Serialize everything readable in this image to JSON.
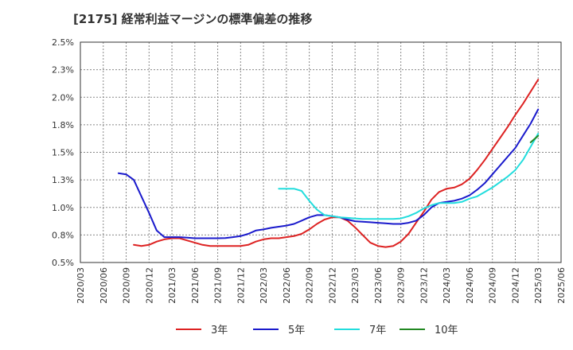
{
  "chart_data": {
    "type": "line",
    "title": "[2175]  経常利益マージンの標準偏差の推移",
    "xlabel": "",
    "ylabel": "",
    "ylim": [
      0.5,
      2.5
    ],
    "yticks": [
      "0.5%",
      "0.8%",
      "1.0%",
      "1.3%",
      "1.5%",
      "1.8%",
      "2.0%",
      "2.3%",
      "2.5%"
    ],
    "xticks": [
      "2020/03",
      "2020/06",
      "2020/09",
      "2020/12",
      "2021/03",
      "2021/06",
      "2021/09",
      "2021/12",
      "2022/03",
      "2022/06",
      "2022/09",
      "2022/12",
      "2023/03",
      "2023/06",
      "2023/09",
      "2023/12",
      "2024/03",
      "2024/06",
      "2024/09",
      "2024/12",
      "2025/03",
      "2025/06"
    ],
    "grid": true,
    "legend_position": "bottom",
    "series": [
      {
        "name": "3年",
        "color": "#dd2222",
        "values": [
          0.66,
          0.65,
          0.66,
          0.69,
          0.71,
          0.72,
          0.72,
          0.7,
          0.68,
          0.66,
          0.65,
          0.65,
          0.65,
          0.65,
          0.65,
          0.66,
          0.69,
          0.71,
          0.72,
          0.72,
          0.73,
          0.74,
          0.76,
          0.8,
          0.85,
          0.89,
          0.91,
          0.91,
          0.88,
          0.82,
          0.75,
          0.68,
          0.65,
          0.64,
          0.65,
          0.69,
          0.76,
          0.86,
          0.96,
          1.07,
          1.14,
          1.17,
          1.18,
          1.21,
          1.26,
          1.34,
          1.43,
          1.53,
          1.63,
          1.73,
          1.84,
          1.94,
          2.05,
          2.16
        ]
      },
      {
        "name": "5年",
        "color": "#1a1acc",
        "values": [
          1.31,
          1.3,
          1.25,
          1.1,
          0.95,
          0.79,
          0.73,
          0.73,
          0.73,
          0.725,
          0.72,
          0.72,
          0.72,
          0.72,
          0.722,
          0.73,
          0.74,
          0.76,
          0.79,
          0.8,
          0.815,
          0.825,
          0.835,
          0.85,
          0.88,
          0.91,
          0.93,
          0.93,
          0.92,
          0.91,
          0.89,
          0.875,
          0.87,
          0.865,
          0.86,
          0.855,
          0.85,
          0.85,
          0.86,
          0.88,
          0.93,
          1.0,
          1.04,
          1.05,
          1.06,
          1.08,
          1.11,
          1.16,
          1.22,
          1.3,
          1.38,
          1.46,
          1.54,
          1.65,
          1.76,
          1.89
        ]
      },
      {
        "name": "7年",
        "color": "#22dddd",
        "values": [
          1.17,
          1.17,
          1.17,
          1.15,
          1.06,
          0.98,
          0.93,
          0.92,
          0.91,
          0.905,
          0.9,
          0.895,
          0.895,
          0.895,
          0.895,
          0.895,
          0.9,
          0.92,
          0.95,
          0.99,
          1.02,
          1.04,
          1.04,
          1.04,
          1.05,
          1.08,
          1.1,
          1.14,
          1.18,
          1.23,
          1.28,
          1.34,
          1.43,
          1.55,
          1.67
        ]
      },
      {
        "name": "10年",
        "color": "#228822",
        "values": [
          1.59,
          1.65
        ]
      }
    ]
  }
}
